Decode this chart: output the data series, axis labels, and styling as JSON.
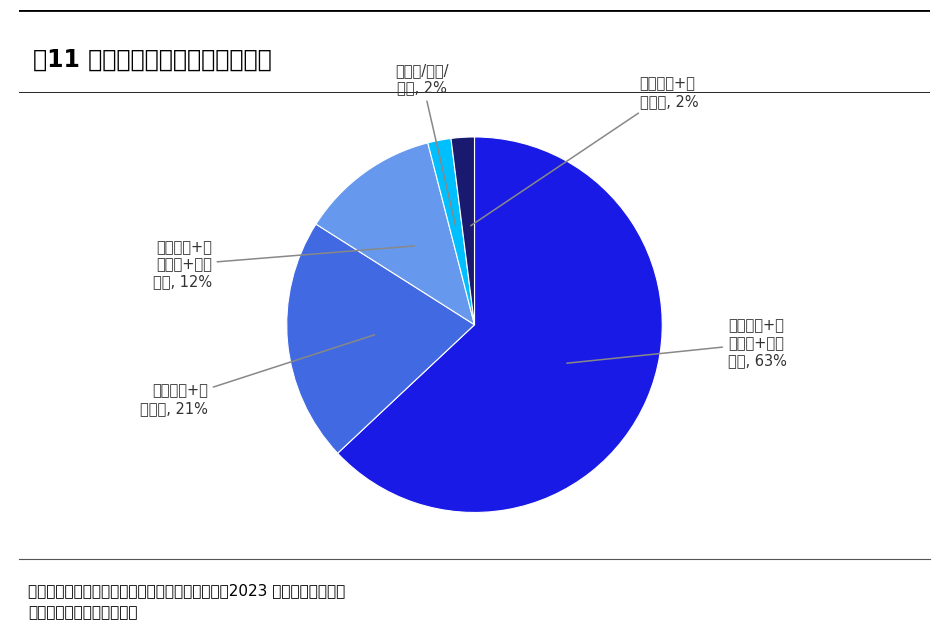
{
  "title": "图11 惠民保产品保险责任范围分布",
  "slices": [
    {
      "label": "自付费用+自\n费费用+特药\n责任, 63%",
      "value": 63,
      "color": "#1A1AE6"
    },
    {
      "label": "自付费用+特\n药费用, 21%",
      "value": 21,
      "color": "#4169E1"
    },
    {
      "label": "自付费用+自\n费费用+特药\n责任, 12%",
      "value": 12,
      "color": "#6699EE"
    },
    {
      "label": "仅自付/自费/\n特药, 2%",
      "value": 2,
      "color": "#00BFFF"
    },
    {
      "label": "自费费用+特\n药费用, 2%",
      "value": 2,
      "color": "#191970"
    }
  ],
  "source_text": "资料来源：新浪健康保险研究院与中国药科大学《2023 年惠民保回顾及展\n望报告》，海通证券研究所",
  "bg_color": "#FFFFFF",
  "footer_bg": "#F0F4F8",
  "title_fontsize": 17,
  "label_fontsize": 10.5,
  "source_fontsize": 11,
  "label_color": "#333333"
}
